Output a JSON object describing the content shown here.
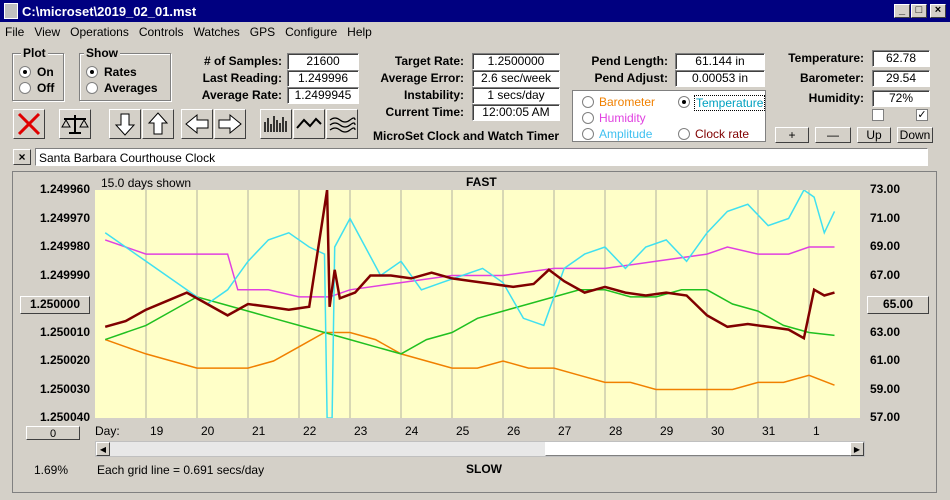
{
  "window": {
    "title": "C:\\microset\\2019_02_01.mst"
  },
  "menu": [
    "File",
    "View",
    "Operations",
    "Controls",
    "Watches",
    "GPS",
    "Configure",
    "Help"
  ],
  "plot_group": {
    "title": "Plot",
    "on": "On",
    "off": "Off",
    "selected": "On"
  },
  "show_group": {
    "title": "Show",
    "rates": "Rates",
    "averages": "Averages",
    "selected": "Rates"
  },
  "stats": {
    "samples_label": "# of Samples:",
    "samples": "21600",
    "last_label": "Last Reading:",
    "last": "1.249996",
    "avg_label": "Average Rate:",
    "avg": "1.2499945",
    "target_label": "Target Rate:",
    "target": "1.2500000",
    "avgerr_label": "Average Error:",
    "avgerr": "2.6 sec/week",
    "instab_label": "Instability:",
    "instab": "1 secs/day",
    "time_label": "Current Time:",
    "time": "12:00:05 AM",
    "pendlen_label": "Pend Length:",
    "pendlen": "61.144 in",
    "pendadj_label": "Pend Adjust:",
    "pendadj": "0.00053 in",
    "temp_label": "Temperature:",
    "temp": "62.78",
    "baro_label": "Barometer:",
    "baro": "29.54",
    "hum_label": "Humidity:",
    "hum": "72%"
  },
  "app_caption": "MicroSet Clock and Watch Timer",
  "sensor_options": {
    "barometer": "Barometer",
    "temperature": "Temperature",
    "humidity": "Humidity",
    "amplitude": "Amplitude",
    "clock_rate": "Clock rate",
    "selected": "Temperature"
  },
  "adjust_buttons": {
    "plus": "+",
    "minus": "—",
    "up": "Up",
    "down": "Down"
  },
  "clock_name": "Santa Barbara Courthouse Clock",
  "clear_label": "×",
  "chart_header": {
    "days_shown": "15.0 days shown",
    "fast": "FAST",
    "slow": "SLOW"
  },
  "footer": {
    "percent": "1.69%",
    "grid_note": "Each grid line = 0.691 secs/day",
    "day_label": "Day:",
    "center_left": "1.250000",
    "center_right": "65.00",
    "offset_btn": "0"
  },
  "colors": {
    "rate": "#800000",
    "temperature": "#40e0f0",
    "humidity": "#e040e0",
    "barometer": "#f08000",
    "amplitude": "#20c020",
    "plot_bg": "#ffffc8"
  },
  "chart_data": {
    "type": "line",
    "x_ticks": [
      "19",
      "20",
      "21",
      "22",
      "23",
      "24",
      "25",
      "26",
      "27",
      "28",
      "29",
      "30",
      "31",
      "1"
    ],
    "y_left_ticks": [
      "1.249960",
      "1.249970",
      "1.249980",
      "1.249990",
      "1.250000",
      "1.250010",
      "1.250020",
      "1.250030",
      "1.250040"
    ],
    "y_right_ticks": [
      "73.00",
      "71.00",
      "69.00",
      "67.00",
      "65.00",
      "63.00",
      "61.00",
      "59.00",
      "57.00"
    ],
    "ylim_left": [
      1.25004,
      1.24996
    ],
    "ylim_right": [
      57,
      73
    ],
    "grid": true,
    "series": [
      {
        "name": "Clock rate",
        "color_key": "rate",
        "axis": "left",
        "x": [
          18.2,
          18.6,
          19.0,
          19.4,
          19.8,
          20.2,
          20.6,
          21.0,
          21.4,
          21.8,
          22.2,
          22.55,
          22.6,
          22.7,
          22.8,
          23.1,
          23.4,
          23.8,
          24.2,
          24.6,
          25.0,
          25.4,
          25.8,
          26.2,
          26.6,
          26.9,
          27.2,
          27.6,
          28.0,
          28.4,
          28.8,
          29.2,
          29.6,
          30.0,
          30.4,
          30.8,
          31.2,
          31.6,
          31.9,
          32.1,
          32.3,
          32.5
        ],
        "values": [
          1.250008,
          1.250006,
          1.250002,
          1.249999,
          1.249996,
          1.25,
          1.250004,
          1.25,
          1.250001,
          1.250002,
          1.250001,
          1.24996,
          1.250001,
          1.249988,
          1.249998,
          1.249996,
          1.24999,
          1.24999,
          1.249991,
          1.249989,
          1.249991,
          1.249992,
          1.249993,
          1.249994,
          1.249993,
          1.249988,
          1.249992,
          1.249996,
          1.249994,
          1.249996,
          1.249997,
          1.249996,
          1.249997,
          1.250004,
          1.250008,
          1.250007,
          1.250008,
          1.250009,
          1.250012,
          1.249995,
          1.249997,
          1.249996
        ]
      },
      {
        "name": "Temperature",
        "color_key": "temperature",
        "axis": "right",
        "x": [
          18.2,
          18.6,
          19.0,
          19.4,
          19.8,
          20.2,
          20.6,
          21.0,
          21.4,
          21.8,
          22.2,
          22.5,
          22.55,
          22.65,
          22.7,
          23.0,
          23.3,
          23.6,
          24.0,
          24.4,
          24.8,
          25.2,
          25.6,
          26.0,
          26.4,
          26.8,
          27.2,
          27.6,
          28.0,
          28.4,
          28.8,
          29.2,
          29.6,
          30.0,
          30.4,
          30.8,
          31.2,
          31.6,
          31.9,
          32.1,
          32.3,
          32.5
        ],
        "values": [
          70.0,
          69.0,
          68.0,
          67.0,
          66.0,
          65.0,
          66.0,
          68.0,
          69.5,
          70.0,
          69.0,
          68.5,
          57.0,
          57.0,
          69.0,
          71.0,
          69.0,
          67.0,
          68.0,
          66.0,
          66.5,
          67.0,
          67.5,
          66.5,
          64.0,
          63.5,
          67.5,
          68.5,
          69.0,
          67.5,
          69.0,
          69.5,
          68.0,
          70.0,
          71.5,
          72.0,
          70.5,
          71.0,
          73.0,
          72.5,
          70.0,
          71.5
        ]
      },
      {
        "name": "Humidity",
        "color_key": "humidity",
        "axis": "right",
        "x": [
          18.2,
          19.0,
          20.0,
          20.6,
          20.8,
          21.4,
          22.0,
          22.6,
          23.0,
          24.0,
          25.0,
          26.0,
          27.0,
          28.0,
          29.0,
          30.0,
          30.4,
          31.0,
          31.6,
          32.0,
          32.5
        ],
        "values": [
          69.5,
          68.5,
          68.5,
          68.5,
          66.0,
          66.0,
          65.5,
          65.5,
          66.0,
          66.5,
          67.0,
          67.0,
          67.5,
          67.5,
          68.0,
          68.5,
          69.0,
          68.5,
          68.5,
          69.0,
          69.0
        ]
      },
      {
        "name": "Barometer",
        "color_key": "barometer",
        "axis": "right",
        "x": [
          18.2,
          18.6,
          19.0,
          19.5,
          20.0,
          20.5,
          21.0,
          21.5,
          22.0,
          22.5,
          23.0,
          23.5,
          24.0,
          24.5,
          25.0,
          25.5,
          26.0,
          26.5,
          27.0,
          27.5,
          28.0,
          28.5,
          29.0,
          29.5,
          30.0,
          30.5,
          31.0,
          31.5,
          32.0,
          32.5
        ],
        "values": [
          62.5,
          62.0,
          61.5,
          61.0,
          60.5,
          60.5,
          60.5,
          61.0,
          62.0,
          63.0,
          63.0,
          62.5,
          61.5,
          61.0,
          60.5,
          60.5,
          61.0,
          60.5,
          60.5,
          60.0,
          59.5,
          59.5,
          59.0,
          59.0,
          59.0,
          59.0,
          59.5,
          59.5,
          60.0,
          59.3
        ]
      },
      {
        "name": "Amplitude",
        "color_key": "amplitude",
        "axis": "right",
        "x": [
          18.2,
          18.6,
          19.0,
          19.5,
          20.0,
          20.5,
          21.0,
          21.5,
          22.0,
          22.5,
          23.0,
          23.5,
          24.0,
          24.5,
          25.0,
          25.5,
          26.0,
          26.5,
          27.0,
          27.5,
          28.0,
          28.5,
          29.0,
          29.5,
          30.0,
          30.5,
          31.0,
          31.5,
          32.0,
          32.5
        ],
        "values": [
          62.5,
          63.0,
          63.5,
          64.5,
          65.5,
          65.0,
          64.5,
          64.0,
          63.5,
          63.0,
          62.5,
          62.0,
          61.5,
          62.5,
          63.0,
          64.0,
          64.5,
          65.0,
          65.5,
          66.0,
          66.0,
          65.5,
          65.5,
          66.0,
          66.0,
          65.0,
          64.5,
          63.5,
          63.0,
          62.8
        ]
      }
    ]
  }
}
